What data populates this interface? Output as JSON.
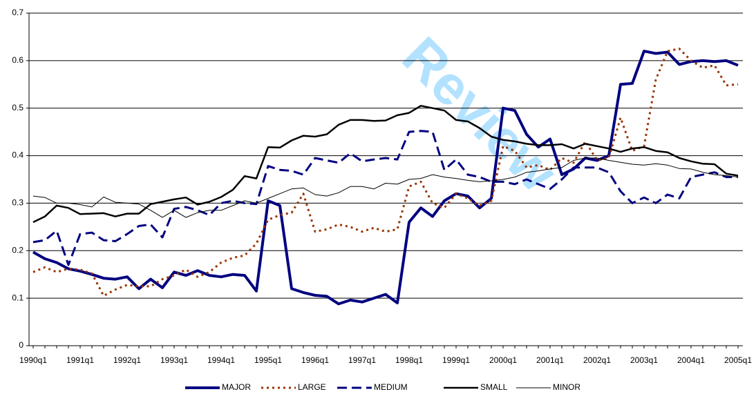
{
  "chart_data": {
    "type": "line",
    "watermark": "Review",
    "categories": [
      "1990q1",
      null,
      null,
      null,
      "1991q1",
      null,
      null,
      null,
      "1992q1",
      null,
      null,
      null,
      "1993q1",
      null,
      null,
      null,
      "1994q1",
      null,
      null,
      null,
      "1995q1",
      null,
      null,
      null,
      "1996q1",
      null,
      null,
      null,
      "1997q1",
      null,
      null,
      null,
      "1998q1",
      null,
      null,
      null,
      "1999q1",
      null,
      null,
      null,
      "2000q1",
      null,
      null,
      null,
      "2001q1",
      null,
      null,
      null,
      "2002q1",
      null,
      null,
      null,
      "2003q1",
      null,
      null,
      null,
      "2004q1",
      null,
      null,
      null,
      "2005q1"
    ],
    "ylim": [
      0,
      0.7
    ],
    "yticks": [
      0,
      0.1,
      0.2,
      0.3,
      0.4,
      0.5,
      0.6,
      0.7
    ],
    "grid": true,
    "legend": "bottom",
    "series": [
      {
        "name": "MAJOR",
        "color": "#000080",
        "style": "thick",
        "values": [
          0.197,
          0.183,
          0.175,
          0.162,
          0.157,
          0.15,
          0.142,
          0.14,
          0.145,
          0.12,
          0.14,
          0.122,
          0.155,
          0.148,
          0.158,
          0.148,
          0.145,
          0.15,
          0.148,
          0.115,
          0.305,
          0.295,
          0.12,
          0.112,
          0.106,
          0.104,
          0.088,
          0.096,
          0.092,
          0.1,
          0.108,
          0.09,
          0.26,
          0.29,
          0.272,
          0.305,
          0.32,
          0.315,
          0.29,
          0.31,
          0.5,
          0.495,
          0.445,
          0.418,
          0.435,
          0.36,
          0.372,
          0.395,
          0.39,
          0.4,
          0.55,
          0.552,
          0.62,
          0.615,
          0.618,
          0.592,
          0.598,
          0.6,
          0.598,
          0.6,
          0.59
        ]
      },
      {
        "name": "LARGE",
        "color": "#993300",
        "style": "dotted",
        "values": [
          0.155,
          0.165,
          0.155,
          0.162,
          0.16,
          0.152,
          0.105,
          0.118,
          0.128,
          0.125,
          0.125,
          0.14,
          0.148,
          0.16,
          0.145,
          0.155,
          0.175,
          0.185,
          0.19,
          0.215,
          0.265,
          0.275,
          0.28,
          0.32,
          0.24,
          0.245,
          0.255,
          0.25,
          0.24,
          0.248,
          0.24,
          0.245,
          0.335,
          0.345,
          0.3,
          0.29,
          0.32,
          0.31,
          0.295,
          0.305,
          0.42,
          0.41,
          0.375,
          0.38,
          0.37,
          0.395,
          0.385,
          0.43,
          0.39,
          0.395,
          0.48,
          0.41,
          0.42,
          0.56,
          0.62,
          0.625,
          0.6,
          0.585,
          0.59,
          0.548,
          0.55
        ]
      },
      {
        "name": "MEDIUM",
        "color": "#000080",
        "style": "dashed",
        "values": [
          0.218,
          0.222,
          0.242,
          0.17,
          0.235,
          0.238,
          0.222,
          0.22,
          0.235,
          0.252,
          0.255,
          0.228,
          0.288,
          0.292,
          0.285,
          0.275,
          0.3,
          0.305,
          0.3,
          0.298,
          0.378,
          0.37,
          0.368,
          0.36,
          0.395,
          0.39,
          0.385,
          0.405,
          0.388,
          0.392,
          0.395,
          0.392,
          0.45,
          0.452,
          0.45,
          0.37,
          0.392,
          0.36,
          0.355,
          0.345,
          0.345,
          0.34,
          0.35,
          0.34,
          0.33,
          0.35,
          0.375,
          0.375,
          0.375,
          0.365,
          0.325,
          0.3,
          0.312,
          0.3,
          0.318,
          0.31,
          0.355,
          0.36,
          0.365,
          0.355,
          0.355
        ]
      },
      {
        "name": "SMALL",
        "color": "#000000",
        "style": "medium",
        "values": [
          0.26,
          0.272,
          0.295,
          0.29,
          0.277,
          0.278,
          0.279,
          0.272,
          0.278,
          0.278,
          0.298,
          0.303,
          0.308,
          0.312,
          0.297,
          0.303,
          0.313,
          0.328,
          0.357,
          0.352,
          0.418,
          0.417,
          0.432,
          0.442,
          0.44,
          0.445,
          0.465,
          0.475,
          0.475,
          0.473,
          0.474,
          0.485,
          0.49,
          0.505,
          0.5,
          0.495,
          0.475,
          0.472,
          0.458,
          0.44,
          0.433,
          0.43,
          0.425,
          0.422,
          0.422,
          0.424,
          0.415,
          0.425,
          0.42,
          0.415,
          0.408,
          0.415,
          0.418,
          0.41,
          0.407,
          0.395,
          0.388,
          0.383,
          0.382,
          0.362,
          0.358
        ]
      },
      {
        "name": "MINOR",
        "color": "#000000",
        "style": "thin",
        "values": [
          0.315,
          0.312,
          0.3,
          0.3,
          0.297,
          0.292,
          0.313,
          0.302,
          0.3,
          0.298,
          0.285,
          0.27,
          0.285,
          0.27,
          0.28,
          0.285,
          0.285,
          0.295,
          0.305,
          0.3,
          0.31,
          0.32,
          0.33,
          0.332,
          0.318,
          0.315,
          0.322,
          0.335,
          0.335,
          0.33,
          0.342,
          0.34,
          0.35,
          0.352,
          0.36,
          0.355,
          0.352,
          0.348,
          0.345,
          0.347,
          0.35,
          0.355,
          0.365,
          0.368,
          0.372,
          0.375,
          0.39,
          0.395,
          0.395,
          0.39,
          0.386,
          0.382,
          0.38,
          0.383,
          0.38,
          0.373,
          0.372,
          0.365,
          0.36,
          0.358,
          0.355
        ]
      }
    ]
  }
}
